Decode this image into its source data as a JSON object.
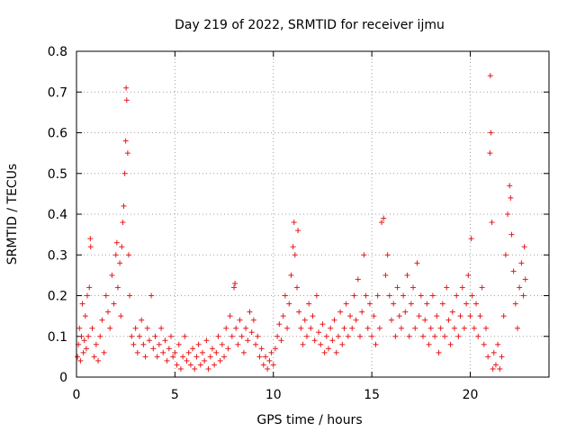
{
  "chart_data": {
    "type": "scatter",
    "title": "Day 219 of 2022, SRMTID for receiver ijmu",
    "xlabel": "GPS time / hours",
    "ylabel": "SRMTID / TECUs",
    "xlim": [
      0,
      24
    ],
    "ylim": [
      0,
      0.8
    ],
    "xticks": [
      "0",
      "5",
      "10",
      "15",
      "20"
    ],
    "yticks": [
      "0",
      "0.1",
      "0.2",
      "0.3",
      "0.4",
      "0.5",
      "0.6",
      "0.7",
      "0.8"
    ],
    "grid": true,
    "marker": "+",
    "color": "#e41a1c",
    "series": [
      {
        "name": "SRMTID",
        "points": [
          [
            0.05,
            0.05
          ],
          [
            0.1,
            0.08
          ],
          [
            0.15,
            0.12
          ],
          [
            0.2,
            0.04
          ],
          [
            0.25,
            0.1
          ],
          [
            0.3,
            0.18
          ],
          [
            0.35,
            0.06
          ],
          [
            0.4,
            0.09
          ],
          [
            0.45,
            0.15
          ],
          [
            0.5,
            0.07
          ],
          [
            0.55,
            0.2
          ],
          [
            0.6,
            0.1
          ],
          [
            0.65,
            0.22
          ],
          [
            0.7,
            0.34
          ],
          [
            0.72,
            0.32
          ],
          [
            0.8,
            0.12
          ],
          [
            0.9,
            0.05
          ],
          [
            1.0,
            0.08
          ],
          [
            1.1,
            0.04
          ],
          [
            1.2,
            0.1
          ],
          [
            1.3,
            0.14
          ],
          [
            1.4,
            0.06
          ],
          [
            1.5,
            0.2
          ],
          [
            1.6,
            0.16
          ],
          [
            1.7,
            0.12
          ],
          [
            1.8,
            0.25
          ],
          [
            1.9,
            0.18
          ],
          [
            2.0,
            0.3
          ],
          [
            2.05,
            0.33
          ],
          [
            2.1,
            0.22
          ],
          [
            2.2,
            0.28
          ],
          [
            2.25,
            0.15
          ],
          [
            2.3,
            0.32
          ],
          [
            2.35,
            0.38
          ],
          [
            2.4,
            0.42
          ],
          [
            2.45,
            0.5
          ],
          [
            2.5,
            0.58
          ],
          [
            2.52,
            0.71
          ],
          [
            2.55,
            0.68
          ],
          [
            2.6,
            0.55
          ],
          [
            2.65,
            0.3
          ],
          [
            2.7,
            0.2
          ],
          [
            2.8,
            0.1
          ],
          [
            2.9,
            0.08
          ],
          [
            3.0,
            0.12
          ],
          [
            3.1,
            0.06
          ],
          [
            3.2,
            0.1
          ],
          [
            3.3,
            0.14
          ],
          [
            3.4,
            0.08
          ],
          [
            3.5,
            0.05
          ],
          [
            3.6,
            0.12
          ],
          [
            3.7,
            0.09
          ],
          [
            3.8,
            0.2
          ],
          [
            3.9,
            0.07
          ],
          [
            4.0,
            0.1
          ],
          [
            4.1,
            0.05
          ],
          [
            4.2,
            0.08
          ],
          [
            4.3,
            0.12
          ],
          [
            4.4,
            0.06
          ],
          [
            4.5,
            0.09
          ],
          [
            4.6,
            0.04
          ],
          [
            4.7,
            0.07
          ],
          [
            4.8,
            0.1
          ],
          [
            4.9,
            0.05
          ],
          [
            5.0,
            0.06
          ],
          [
            5.1,
            0.03
          ],
          [
            5.2,
            0.08
          ],
          [
            5.3,
            0.02
          ],
          [
            5.4,
            0.05
          ],
          [
            5.5,
            0.1
          ],
          [
            5.6,
            0.04
          ],
          [
            5.7,
            0.06
          ],
          [
            5.8,
            0.03
          ],
          [
            5.9,
            0.07
          ],
          [
            6.0,
            0.02
          ],
          [
            6.1,
            0.05
          ],
          [
            6.2,
            0.08
          ],
          [
            6.3,
            0.03
          ],
          [
            6.4,
            0.06
          ],
          [
            6.5,
            0.04
          ],
          [
            6.6,
            0.09
          ],
          [
            6.7,
            0.02
          ],
          [
            6.8,
            0.05
          ],
          [
            6.9,
            0.07
          ],
          [
            7.0,
            0.03
          ],
          [
            7.1,
            0.06
          ],
          [
            7.2,
            0.1
          ],
          [
            7.3,
            0.04
          ],
          [
            7.4,
            0.08
          ],
          [
            7.5,
            0.05
          ],
          [
            7.6,
            0.12
          ],
          [
            7.7,
            0.07
          ],
          [
            7.8,
            0.15
          ],
          [
            7.9,
            0.1
          ],
          [
            8.0,
            0.22
          ],
          [
            8.05,
            0.23
          ],
          [
            8.1,
            0.12
          ],
          [
            8.2,
            0.08
          ],
          [
            8.3,
            0.14
          ],
          [
            8.4,
            0.1
          ],
          [
            8.5,
            0.06
          ],
          [
            8.6,
            0.12
          ],
          [
            8.7,
            0.09
          ],
          [
            8.8,
            0.16
          ],
          [
            8.9,
            0.11
          ],
          [
            9.0,
            0.14
          ],
          [
            9.1,
            0.08
          ],
          [
            9.2,
            0.1
          ],
          [
            9.3,
            0.05
          ],
          [
            9.4,
            0.07
          ],
          [
            9.5,
            0.03
          ],
          [
            9.6,
            0.05
          ],
          [
            9.7,
            0.02
          ],
          [
            9.8,
            0.04
          ],
          [
            9.9,
            0.06
          ],
          [
            10.0,
            0.03
          ],
          [
            10.1,
            0.07
          ],
          [
            10.2,
            0.1
          ],
          [
            10.3,
            0.13
          ],
          [
            10.4,
            0.09
          ],
          [
            10.5,
            0.15
          ],
          [
            10.6,
            0.2
          ],
          [
            10.7,
            0.12
          ],
          [
            10.8,
            0.18
          ],
          [
            10.9,
            0.25
          ],
          [
            11.0,
            0.32
          ],
          [
            11.05,
            0.38
          ],
          [
            11.1,
            0.3
          ],
          [
            11.2,
            0.22
          ],
          [
            11.25,
            0.36
          ],
          [
            11.3,
            0.16
          ],
          [
            11.4,
            0.12
          ],
          [
            11.5,
            0.08
          ],
          [
            11.6,
            0.14
          ],
          [
            11.7,
            0.1
          ],
          [
            11.8,
            0.18
          ],
          [
            11.9,
            0.12
          ],
          [
            12.0,
            0.15
          ],
          [
            12.1,
            0.09
          ],
          [
            12.2,
            0.2
          ],
          [
            12.3,
            0.11
          ],
          [
            12.4,
            0.08
          ],
          [
            12.5,
            0.13
          ],
          [
            12.6,
            0.06
          ],
          [
            12.7,
            0.1
          ],
          [
            12.8,
            0.07
          ],
          [
            12.9,
            0.12
          ],
          [
            13.0,
            0.09
          ],
          [
            13.1,
            0.14
          ],
          [
            13.2,
            0.06
          ],
          [
            13.3,
            0.1
          ],
          [
            13.4,
            0.16
          ],
          [
            13.5,
            0.08
          ],
          [
            13.6,
            0.12
          ],
          [
            13.7,
            0.18
          ],
          [
            13.8,
            0.1
          ],
          [
            13.9,
            0.15
          ],
          [
            14.0,
            0.12
          ],
          [
            14.1,
            0.2
          ],
          [
            14.2,
            0.14
          ],
          [
            14.3,
            0.24
          ],
          [
            14.4,
            0.1
          ],
          [
            14.5,
            0.16
          ],
          [
            14.6,
            0.3
          ],
          [
            14.7,
            0.2
          ],
          [
            14.8,
            0.12
          ],
          [
            14.9,
            0.18
          ],
          [
            15.0,
            0.1
          ],
          [
            15.1,
            0.15
          ],
          [
            15.2,
            0.08
          ],
          [
            15.3,
            0.2
          ],
          [
            15.4,
            0.12
          ],
          [
            15.5,
            0.38
          ],
          [
            15.6,
            0.39
          ],
          [
            15.7,
            0.25
          ],
          [
            15.8,
            0.3
          ],
          [
            15.9,
            0.2
          ],
          [
            16.0,
            0.14
          ],
          [
            16.1,
            0.18
          ],
          [
            16.2,
            0.1
          ],
          [
            16.3,
            0.22
          ],
          [
            16.4,
            0.15
          ],
          [
            16.5,
            0.12
          ],
          [
            16.6,
            0.2
          ],
          [
            16.7,
            0.16
          ],
          [
            16.8,
            0.25
          ],
          [
            16.9,
            0.1
          ],
          [
            17.0,
            0.18
          ],
          [
            17.1,
            0.22
          ],
          [
            17.2,
            0.12
          ],
          [
            17.3,
            0.28
          ],
          [
            17.4,
            0.15
          ],
          [
            17.5,
            0.2
          ],
          [
            17.6,
            0.1
          ],
          [
            17.7,
            0.14
          ],
          [
            17.8,
            0.18
          ],
          [
            17.9,
            0.08
          ],
          [
            18.0,
            0.12
          ],
          [
            18.1,
            0.2
          ],
          [
            18.2,
            0.1
          ],
          [
            18.3,
            0.15
          ],
          [
            18.4,
            0.06
          ],
          [
            18.5,
            0.12
          ],
          [
            18.6,
            0.18
          ],
          [
            18.7,
            0.1
          ],
          [
            18.8,
            0.22
          ],
          [
            18.9,
            0.14
          ],
          [
            19.0,
            0.08
          ],
          [
            19.1,
            0.16
          ],
          [
            19.2,
            0.12
          ],
          [
            19.3,
            0.2
          ],
          [
            19.4,
            0.1
          ],
          [
            19.5,
            0.15
          ],
          [
            19.6,
            0.22
          ],
          [
            19.7,
            0.12
          ],
          [
            19.8,
            0.18
          ],
          [
            19.9,
            0.25
          ],
          [
            20.0,
            0.15
          ],
          [
            20.05,
            0.34
          ],
          [
            20.1,
            0.2
          ],
          [
            20.2,
            0.12
          ],
          [
            20.3,
            0.18
          ],
          [
            20.4,
            0.1
          ],
          [
            20.5,
            0.15
          ],
          [
            20.6,
            0.22
          ],
          [
            20.7,
            0.08
          ],
          [
            20.8,
            0.12
          ],
          [
            20.9,
            0.05
          ],
          [
            21.0,
            0.55
          ],
          [
            21.02,
            0.74
          ],
          [
            21.05,
            0.6
          ],
          [
            21.1,
            0.38
          ],
          [
            21.15,
            0.02
          ],
          [
            21.2,
            0.06
          ],
          [
            21.3,
            0.03
          ],
          [
            21.4,
            0.08
          ],
          [
            21.5,
            0.02
          ],
          [
            21.6,
            0.05
          ],
          [
            21.7,
            0.15
          ],
          [
            21.8,
            0.3
          ],
          [
            21.9,
            0.4
          ],
          [
            22.0,
            0.47
          ],
          [
            22.05,
            0.44
          ],
          [
            22.1,
            0.35
          ],
          [
            22.2,
            0.26
          ],
          [
            22.3,
            0.18
          ],
          [
            22.4,
            0.12
          ],
          [
            22.5,
            0.22
          ],
          [
            22.6,
            0.28
          ],
          [
            22.7,
            0.2
          ],
          [
            22.75,
            0.32
          ],
          [
            22.8,
            0.24
          ]
        ]
      }
    ]
  }
}
